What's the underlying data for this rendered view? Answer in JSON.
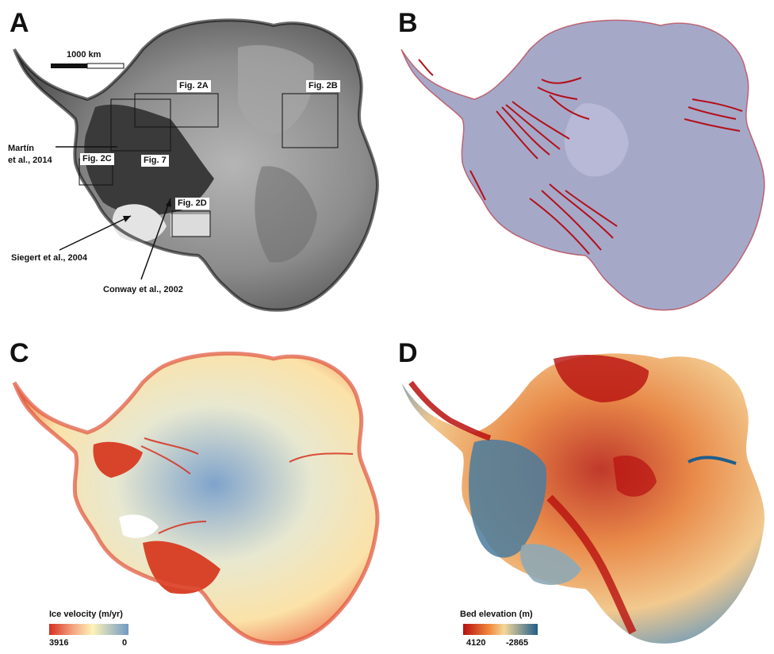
{
  "panels": {
    "a": {
      "letter": "A",
      "scale_bar": "1000 km",
      "fig_labels": {
        "f2a": "Fig. 2A",
        "f2b": "Fig. 2B",
        "f2c": "Fig. 2C",
        "f7": "Fig. 7",
        "f2d": "Fig. 2D"
      },
      "citations": {
        "martin_1": "Martín",
        "martin_2": "et al., 2014",
        "siegert": "Siegert et al., 2004",
        "conway": "Conway et al., 2002"
      },
      "palette": {
        "ice": "#8a8a8a",
        "dark": "#2b2b2b",
        "light": "#e6e6e6"
      }
    },
    "b": {
      "letter": "B",
      "palette": {
        "ice": "#a9a9c9",
        "streams": "#b3101a"
      }
    },
    "c": {
      "letter": "C",
      "colorbar": {
        "title": "Ice velocity (m/yr)",
        "min_label": "3916",
        "max_label": "0"
      },
      "palette": {
        "fast": "#d7301f",
        "mid": "#fdf3b8",
        "slow": "#6f9ac6"
      }
    },
    "d": {
      "letter": "D",
      "colorbar": {
        "title": "Bed elevation (m)",
        "min_label": "4120",
        "max_label": "-2865"
      },
      "palette": {
        "high": "#b8100f",
        "mid": "#f5c37a",
        "low": "#1f5e8a"
      }
    }
  }
}
